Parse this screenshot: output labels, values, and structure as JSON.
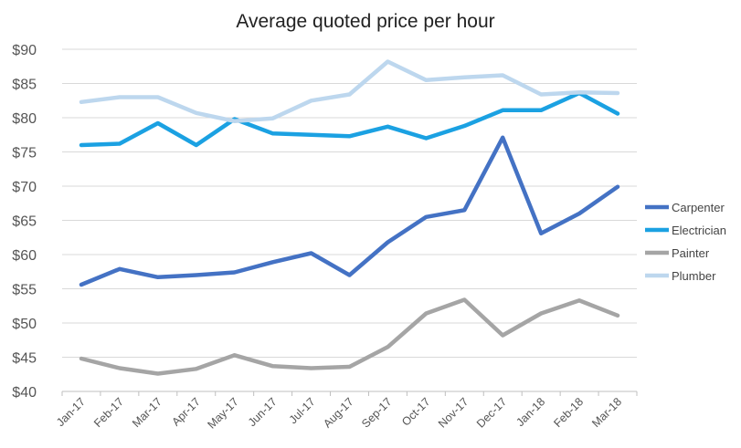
{
  "chart_data": {
    "type": "line",
    "title": "Average quoted price per hour",
    "xlabel": "",
    "ylabel": "",
    "categories": [
      "Jan-17",
      "Feb-17",
      "Mar-17",
      "Apr-17",
      "May-17",
      "Jun-17",
      "Jul-17",
      "Aug-17",
      "Sep-17",
      "Oct-17",
      "Nov-17",
      "Dec-17",
      "Jan-18",
      "Feb-18",
      "Mar-18"
    ],
    "ylim": [
      40,
      90
    ],
    "yticks": [
      40,
      45,
      50,
      55,
      60,
      65,
      70,
      75,
      80,
      85,
      90
    ],
    "ytick_labels": [
      "$40",
      "$45",
      "$50",
      "$55",
      "$60",
      "$65",
      "$70",
      "$75",
      "$80",
      "$85",
      "$90"
    ],
    "grid": "horizontal",
    "legend_position": "right",
    "series": [
      {
        "name": "Carpenter",
        "color": "#4472C4",
        "values": [
          55.6,
          57.9,
          56.7,
          57.0,
          57.4,
          58.9,
          60.2,
          57.0,
          61.8,
          65.5,
          66.5,
          77.1,
          63.1,
          66.0,
          69.9
        ]
      },
      {
        "name": "Electrician",
        "color": "#1BA1E2",
        "values": [
          76.0,
          76.2,
          79.2,
          76.0,
          79.8,
          77.7,
          77.5,
          77.3,
          78.7,
          77.0,
          78.8,
          81.1,
          81.1,
          83.6,
          80.6
        ]
      },
      {
        "name": "Painter",
        "color": "#A5A5A5",
        "values": [
          44.8,
          43.4,
          42.6,
          43.3,
          45.3,
          43.7,
          43.4,
          43.6,
          46.5,
          51.4,
          53.4,
          48.2,
          51.4,
          53.3,
          51.1
        ]
      },
      {
        "name": "Plumber",
        "color": "#BDD7EE",
        "values": [
          82.3,
          83.0,
          83.0,
          80.7,
          79.5,
          79.9,
          82.5,
          83.4,
          88.2,
          85.5,
          85.9,
          86.2,
          83.4,
          83.7,
          83.6
        ]
      }
    ]
  }
}
